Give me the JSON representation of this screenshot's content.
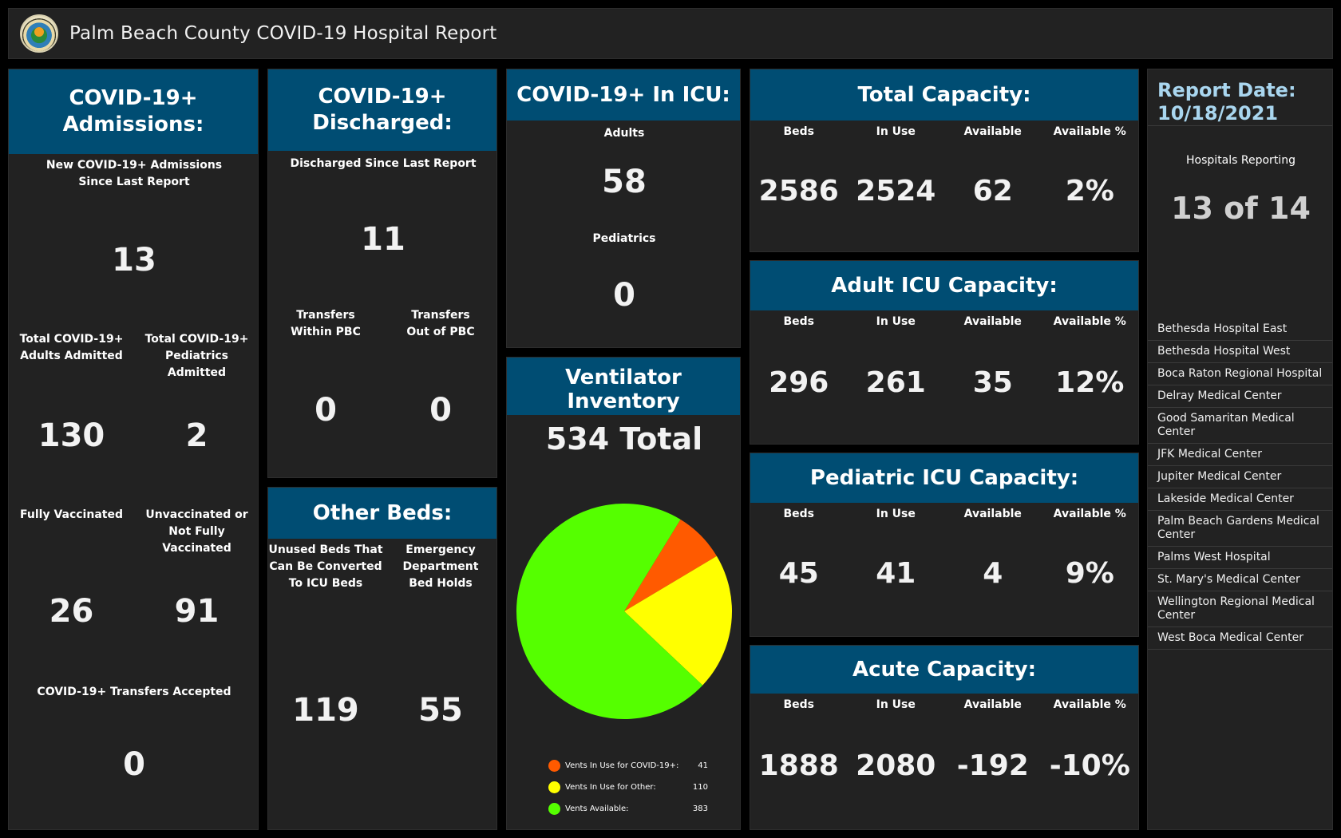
{
  "header": {
    "title": "Palm Beach County COVID-19 Hospital Report",
    "logo_icon": "county-seal-icon"
  },
  "admissions": {
    "title": "COVID-19+ Admissions:",
    "new_label_1": "New COVID-19+ Admissions",
    "new_label_2": "Since Last Report",
    "new_value": "13",
    "adults_label_1": "Total COVID-19+",
    "adults_label_2": "Adults Admitted",
    "adults_value": "130",
    "peds_label_1": "Total COVID-19+",
    "peds_label_2": "Pediatrics Admitted",
    "peds_value": "2",
    "vacc_label": "Fully Vaccinated",
    "vacc_value": "26",
    "unvacc_label_1": "Unvaccinated or",
    "unvacc_label_2": "Not Fully Vaccinated",
    "unvacc_value": "91",
    "transfers_label": "COVID-19+ Transfers Accepted",
    "transfers_value": "0"
  },
  "discharged": {
    "title": "COVID-19+ Discharged:",
    "since_label": "Discharged Since Last Report",
    "since_value": "11",
    "within_label_1": "Transfers",
    "within_label_2": "Within PBC",
    "within_value": "0",
    "out_label_1": "Transfers",
    "out_label_2": "Out of PBC",
    "out_value": "0"
  },
  "other_beds": {
    "title": "Other Beds:",
    "unused_label_1": "Unused Beds That",
    "unused_label_2": "Can Be Converted",
    "unused_label_3": "To ICU Beds",
    "unused_value": "119",
    "ed_label_1": "Emergency",
    "ed_label_2": "Department",
    "ed_label_3": "Bed Holds",
    "ed_value": "55"
  },
  "icu": {
    "title": "COVID-19+ In ICU:",
    "adults_label": "Adults",
    "adults_value": "58",
    "peds_label": "Pediatrics",
    "peds_value": "0"
  },
  "ventilator": {
    "title": "Ventilator Inventory",
    "total": "534 Total"
  },
  "chart_data": {
    "type": "pie",
    "categories": [
      "Vents In Use for COVID-19+:",
      "Vents In Use for Other:",
      "Vents Available:"
    ],
    "values": [
      41,
      110,
      383
    ],
    "colors": [
      "#ff5a00",
      "#ffff00",
      "#55ff00"
    ],
    "title": ""
  },
  "capacity_labels": {
    "beds": "Beds",
    "in_use": "In Use",
    "available": "Available",
    "available_pct": "Available %"
  },
  "total_capacity": {
    "title": "Total Capacity:",
    "beds": "2586",
    "in_use": "2524",
    "available": "62",
    "available_pct": "2%"
  },
  "adult_icu": {
    "title": "Adult ICU Capacity:",
    "beds": "296",
    "in_use": "261",
    "available": "35",
    "available_pct": "12%"
  },
  "ped_icu": {
    "title": "Pediatric ICU Capacity:",
    "beds": "45",
    "in_use": "41",
    "available": "4",
    "available_pct": "9%"
  },
  "acute": {
    "title": "Acute Capacity:",
    "beds": "1888",
    "in_use": "2080",
    "available": "-192",
    "available_pct": "-10%"
  },
  "report": {
    "date_label": "Report Date:",
    "date": "10/18/2021",
    "reporting_label": "Hospitals Reporting",
    "reporting_value": "13 of 14",
    "hospitals": [
      "Bethesda Hospital East",
      "Bethesda Hospital West",
      "Boca Raton Regional Hospital",
      "Delray Medical Center",
      "Good Samaritan Medical Center",
      "JFK Medical Center",
      "Jupiter Medical Center",
      "Lakeside Medical Center",
      "Palm Beach Gardens Medical Center",
      "Palms West Hospital",
      "St. Mary's Medical Center",
      "Wellington Regional Medical Center",
      "West Boca Medical Center"
    ]
  }
}
